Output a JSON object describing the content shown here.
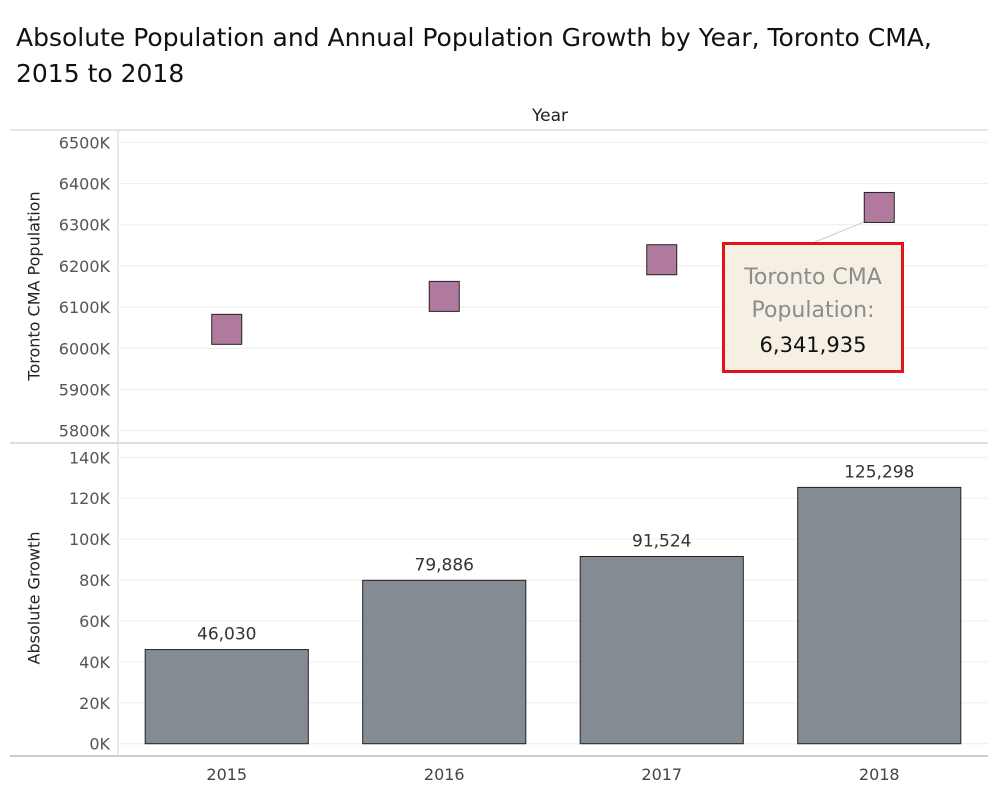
{
  "title": "Absolute Population and Annual Population Growth by Year, Toronto CMA, 2015 to 2018",
  "column_header": "Year",
  "tooltip": {
    "label": "Toronto CMA Population:",
    "value": "6,341,935",
    "border_color": "#e3121b",
    "background": "#f6f0e4"
  },
  "colors": {
    "population_marks": "#b07a9e",
    "growth_bars": "#858b93"
  },
  "chart_data": [
    {
      "type": "scatter",
      "ylabel": "Toronto CMA Population",
      "x": [
        "2015",
        "2016",
        "2017",
        "2018"
      ],
      "y": [
        6046000,
        6126000,
        6215000,
        6341935
      ],
      "ylim": [
        5770000,
        6530000
      ],
      "yticks": [
        5800000,
        5900000,
        6000000,
        6100000,
        6200000,
        6300000,
        6400000,
        6500000
      ],
      "ytick_labels": [
        "5800K",
        "5900K",
        "6000K",
        "6100K",
        "6200K",
        "6300K",
        "6400K",
        "6500K"
      ],
      "grid": true,
      "marker": "square"
    },
    {
      "type": "bar",
      "ylabel": "Absolute Growth",
      "categories": [
        "2015",
        "2016",
        "2017",
        "2018"
      ],
      "values": [
        46030,
        79886,
        91524,
        125298
      ],
      "value_labels": [
        "46,030",
        "79,886",
        "91,524",
        "125,298"
      ],
      "ylim": [
        -6000,
        147000
      ],
      "yticks": [
        0,
        20000,
        40000,
        60000,
        80000,
        100000,
        120000,
        140000
      ],
      "ytick_labels": [
        "0K",
        "20K",
        "40K",
        "60K",
        "80K",
        "100K",
        "120K",
        "140K"
      ],
      "grid": true
    }
  ]
}
